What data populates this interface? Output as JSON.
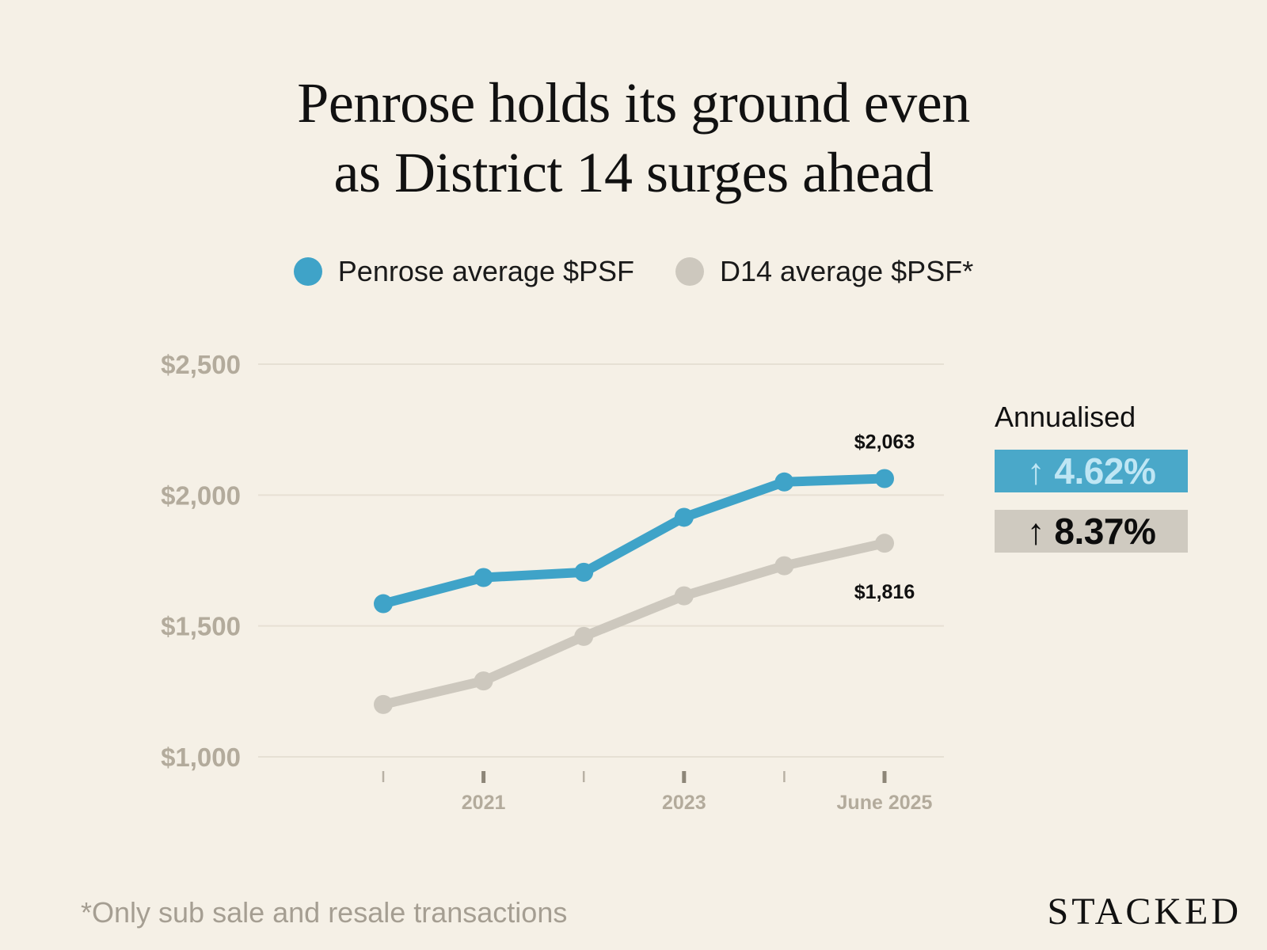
{
  "title": {
    "line1": "Penrose holds its ground even",
    "line2": "as District 14 surges ahead"
  },
  "legend": [
    {
      "label": "Penrose average $PSF",
      "color": "#3fa3c8"
    },
    {
      "label": "D14 average $PSF*",
      "color": "#cdc8be"
    }
  ],
  "annualised": {
    "label": "Annualised",
    "penrose_value": "↑ 4.62%",
    "d14_value": "↑ 8.37%"
  },
  "footnote": "*Only sub sale and resale transactions",
  "brand": "STACKED",
  "colors": {
    "background": "#f5f0e6",
    "penrose": "#3fa3c8",
    "d14": "#cdc8be",
    "gridline": "#e6e0d4",
    "axis_text": "#b3ab9c"
  },
  "chart_data": {
    "type": "line",
    "title": "Penrose holds its ground even as District 14 surges ahead",
    "xlabel": "",
    "ylabel": "",
    "x_ticks": [
      "",
      "2021",
      "",
      "2023",
      "",
      "June 2025"
    ],
    "y_ticks": [
      {
        "value": 1000,
        "label": "$1,000"
      },
      {
        "value": 1500,
        "label": "$1,500"
      },
      {
        "value": 2000,
        "label": "$2,000"
      },
      {
        "value": 2500,
        "label": "$2,500"
      }
    ],
    "ylim": [
      1000,
      2500
    ],
    "grid": true,
    "series": [
      {
        "name": "Penrose average $PSF",
        "color": "#3fa3c8",
        "values": [
          1585,
          1685,
          1705,
          1915,
          2050,
          2063
        ],
        "end_label": "$2,063"
      },
      {
        "name": "D14 average $PSF*",
        "color": "#cdc8be",
        "values": [
          1200,
          1290,
          1460,
          1615,
          1730,
          1816
        ],
        "end_label": "$1,816"
      }
    ]
  }
}
